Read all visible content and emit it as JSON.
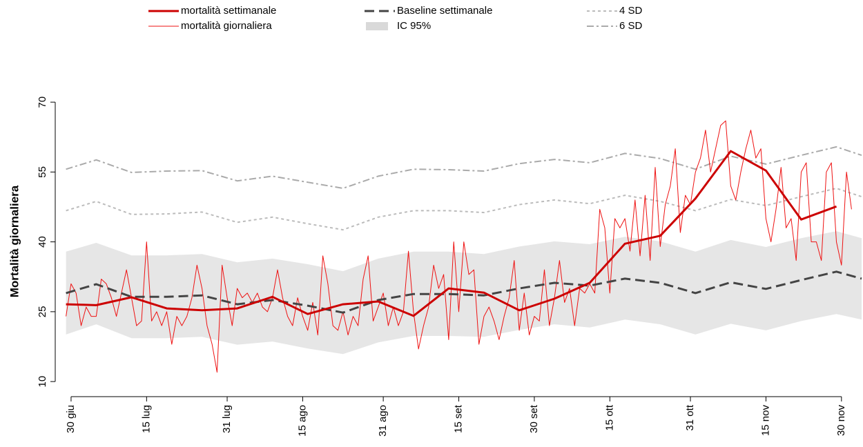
{
  "chart_data": {
    "type": "line",
    "ylabel": "Mortalità giornaliera",
    "xlim": [
      -1.5,
      157
    ],
    "ylim": [
      7.5,
      71.2
    ],
    "yticks": [
      10,
      25,
      40,
      55,
      70
    ],
    "xticks": [
      {
        "value": 0,
        "label": "30 giu"
      },
      {
        "value": 15,
        "label": "15 lug"
      },
      {
        "value": 31,
        "label": "31 lug"
      },
      {
        "value": 46,
        "label": "15 ago"
      },
      {
        "value": 62,
        "label": "31 ago"
      },
      {
        "value": 77,
        "label": "15 set"
      },
      {
        "value": 92,
        "label": "30 set"
      },
      {
        "value": 107,
        "label": "15 ott"
      },
      {
        "value": 123,
        "label": "31 ott"
      },
      {
        "value": 138,
        "label": "15 nov"
      },
      {
        "value": 153,
        "label": "30 nov"
      }
    ],
    "legend": "top",
    "series": [
      {
        "name": "IC 95%",
        "style": "band",
        "color": "#e6e6e6",
        "x": [
          -1,
          5,
          12,
          19,
          26,
          33,
          40,
          47,
          54,
          61,
          68,
          75,
          82,
          89,
          96,
          103,
          110,
          117,
          124,
          131,
          138,
          145,
          152,
          157
        ],
        "values": [
          37.9,
          39.8,
          37.1,
          37.1,
          37.4,
          35.6,
          36.4,
          35.2,
          33.7,
          36.4,
          37.9,
          37.9,
          37.4,
          39.0,
          40.1,
          39.5,
          41.1,
          40.1,
          37.9,
          40.4,
          38.9,
          40.8,
          42.3,
          40.8
        ],
        "lower": [
          20.1,
          22.3,
          19.3,
          19.3,
          19.6,
          17.9,
          18.6,
          17.1,
          15.9,
          18.4,
          19.8,
          19.8,
          19.6,
          21.1,
          22.3,
          21.6,
          23.3,
          22.3,
          20.1,
          22.4,
          21.0,
          23.0,
          24.5,
          23.3
        ]
      },
      {
        "name": "6 SD",
        "style": "dashdot",
        "color": "#aaaaaa",
        "x": [
          -1,
          5,
          12,
          19,
          26,
          33,
          40,
          47,
          54,
          61,
          68,
          75,
          82,
          89,
          96,
          103,
          110,
          117,
          124,
          131,
          138,
          145,
          152,
          157
        ],
        "values": [
          55.6,
          57.6,
          54.9,
          55.2,
          55.3,
          53.1,
          54.1,
          52.8,
          51.5,
          54.1,
          55.6,
          55.5,
          55.2,
          56.8,
          57.7,
          57.0,
          59.0,
          57.9,
          55.6,
          58.4,
          56.7,
          58.6,
          60.4,
          58.6
        ]
      },
      {
        "name": "4 SD",
        "style": "dotted",
        "color": "#bbbbbb",
        "x": [
          -1,
          5,
          12,
          19,
          26,
          33,
          40,
          47,
          54,
          61,
          68,
          75,
          82,
          89,
          96,
          103,
          110,
          117,
          124,
          131,
          138,
          145,
          152,
          157
        ],
        "values": [
          46.7,
          48.7,
          45.9,
          46.0,
          46.4,
          44.2,
          45.3,
          43.9,
          42.6,
          45.3,
          46.7,
          46.7,
          46.3,
          48.0,
          49.0,
          48.2,
          50.0,
          48.7,
          46.7,
          49.1,
          47.8,
          49.7,
          51.5,
          49.7
        ]
      },
      {
        "name": "mortalità giornaliera",
        "style": "thin",
        "color": "#ee1111",
        "x": [
          -1,
          0,
          1,
          2,
          3,
          4,
          5,
          6,
          7,
          8,
          9,
          10,
          11,
          12,
          13,
          14,
          15,
          16,
          17,
          18,
          19,
          20,
          21,
          22,
          23,
          24,
          25,
          26,
          27,
          28,
          29,
          30,
          31,
          32,
          33,
          34,
          35,
          36,
          37,
          38,
          39,
          40,
          41,
          42,
          43,
          44,
          45,
          46,
          47,
          48,
          49,
          50,
          51,
          52,
          53,
          54,
          55,
          56,
          57,
          58,
          59,
          60,
          61,
          62,
          63,
          64,
          65,
          66,
          67,
          68,
          69,
          70,
          71,
          72,
          73,
          74,
          75,
          76,
          77,
          78,
          79,
          80,
          81,
          82,
          83,
          84,
          85,
          86,
          87,
          88,
          89,
          90,
          91,
          92,
          93,
          94,
          95,
          96,
          97,
          98,
          99,
          100,
          101,
          102,
          103,
          104,
          105,
          106,
          107,
          108,
          109,
          110,
          111,
          112,
          113,
          114,
          115,
          116,
          117,
          118,
          119,
          120,
          121,
          122,
          123,
          124,
          125,
          126,
          127,
          128,
          129,
          130,
          131,
          132,
          133,
          134,
          135,
          136,
          137,
          138,
          139,
          140,
          141,
          142,
          143,
          144,
          145,
          146,
          147,
          148,
          149,
          150,
          151,
          152,
          153,
          154,
          155
        ],
        "values": [
          24,
          31,
          29,
          22,
          26,
          24,
          24,
          32,
          31,
          28,
          24,
          29,
          34,
          28,
          22,
          23,
          40,
          23,
          25,
          22,
          25,
          18,
          24,
          22,
          24,
          28,
          35,
          30,
          22,
          18,
          12,
          35,
          28,
          22,
          30,
          28,
          29,
          27,
          29,
          26,
          25,
          28,
          34,
          28,
          24,
          22,
          28,
          24,
          21,
          27,
          20,
          37,
          31,
          22,
          21,
          25,
          20,
          24,
          22,
          32,
          37,
          23,
          26,
          29,
          22,
          26,
          22,
          25,
          38,
          25,
          17,
          22,
          26,
          35,
          30,
          33,
          19,
          40,
          25,
          40,
          33,
          34,
          18,
          24,
          26,
          23,
          19,
          24,
          28,
          36,
          21,
          29,
          20,
          24,
          23,
          34,
          22,
          28,
          36,
          27,
          30,
          22,
          30,
          29,
          31,
          29,
          47,
          43,
          29,
          45,
          43,
          45,
          38,
          49,
          37,
          50,
          36,
          56,
          39,
          48,
          52,
          60,
          42,
          50,
          48,
          55,
          58,
          64,
          55,
          60,
          65,
          66,
          52,
          49,
          55,
          60,
          64,
          58,
          60,
          45,
          40,
          47,
          56,
          43,
          45,
          36,
          55,
          57,
          40,
          40,
          36,
          55,
          57,
          40,
          35,
          55,
          47
        ]
      },
      {
        "name": "Baseline settimanale",
        "style": "dashed",
        "color": "#444444",
        "x": [
          -1,
          5,
          12,
          19,
          26,
          33,
          40,
          47,
          54,
          61,
          68,
          75,
          82,
          89,
          96,
          103,
          110,
          117,
          124,
          131,
          138,
          145,
          152,
          157
        ],
        "values": [
          29.0,
          30.9,
          28.2,
          28.2,
          28.5,
          26.6,
          27.5,
          26.3,
          24.8,
          27.5,
          28.8,
          28.8,
          28.5,
          30.0,
          31.2,
          30.6,
          32.1,
          31.2,
          29.0,
          31.3,
          29.9,
          31.8,
          33.6,
          32.1
        ]
      },
      {
        "name": "mortalità settimanale",
        "style": "thick",
        "color": "#cc0000",
        "x": [
          -1,
          5,
          12,
          19,
          26,
          33,
          40,
          47,
          54,
          61,
          68,
          75,
          82,
          89,
          96,
          103,
          110,
          117,
          124,
          131,
          138,
          145,
          152
        ],
        "values": [
          26.6,
          26.4,
          28.1,
          25.7,
          25.3,
          25.7,
          28.2,
          24.5,
          26.6,
          27.2,
          24.1,
          30.0,
          29.1,
          25.3,
          27.8,
          31.2,
          39.6,
          41.3,
          49.3,
          59.5,
          55.3,
          44.8,
          47.6
        ]
      }
    ]
  }
}
